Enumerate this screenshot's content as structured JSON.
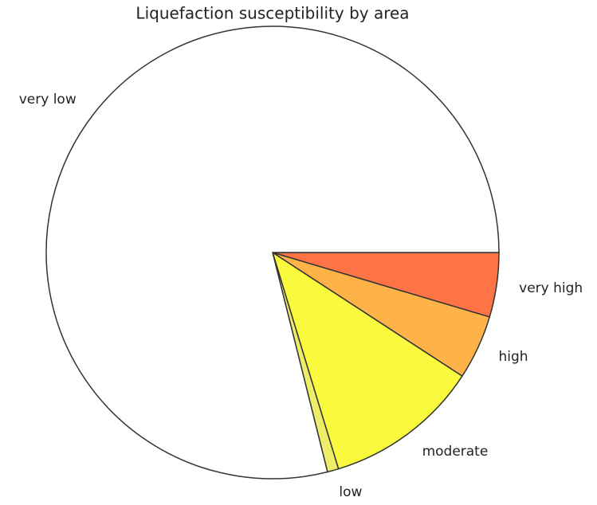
{
  "chart_data": {
    "type": "pie",
    "title": "Liquefaction susceptibility by area",
    "categories": [
      "very high",
      "high",
      "moderate",
      "low",
      "very low"
    ],
    "values": [
      4.6,
      4.6,
      11.1,
      0.8,
      78.9
    ],
    "colors": [
      "#fe7446",
      "#fdb347",
      "#f9f93d",
      "#eded6a",
      "#ffffff"
    ]
  }
}
